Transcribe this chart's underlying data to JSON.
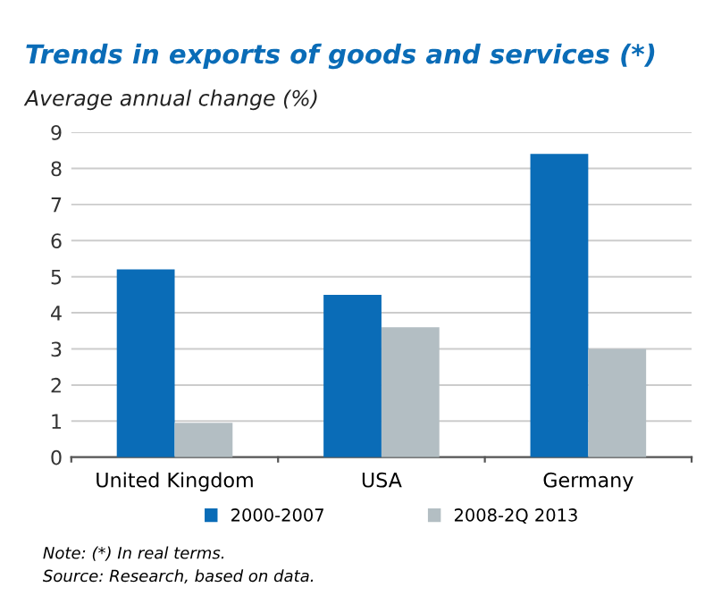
{
  "chart_data": {
    "type": "bar",
    "title": "Trends in exports of goods and services (*)",
    "ylabel": "Average annual change (%)",
    "categories": [
      "United Kingdom",
      "USA",
      "Germany"
    ],
    "series": [
      {
        "name": "2000-2007",
        "color": "#0a6cb7",
        "values": [
          5.2,
          4.5,
          8.4
        ]
      },
      {
        "name": "2008-2Q 2013",
        "color": "#b3bec3",
        "values": [
          0.95,
          3.6,
          3.0
        ]
      }
    ],
    "ylim": [
      0,
      9
    ],
    "yticks": [
      0,
      1,
      2,
      3,
      4,
      5,
      6,
      7,
      8,
      9
    ],
    "grid": "y",
    "legend": "bottom",
    "annotations": [
      "Note: (*) In real terms.",
      "Source: Research, based on data."
    ]
  }
}
